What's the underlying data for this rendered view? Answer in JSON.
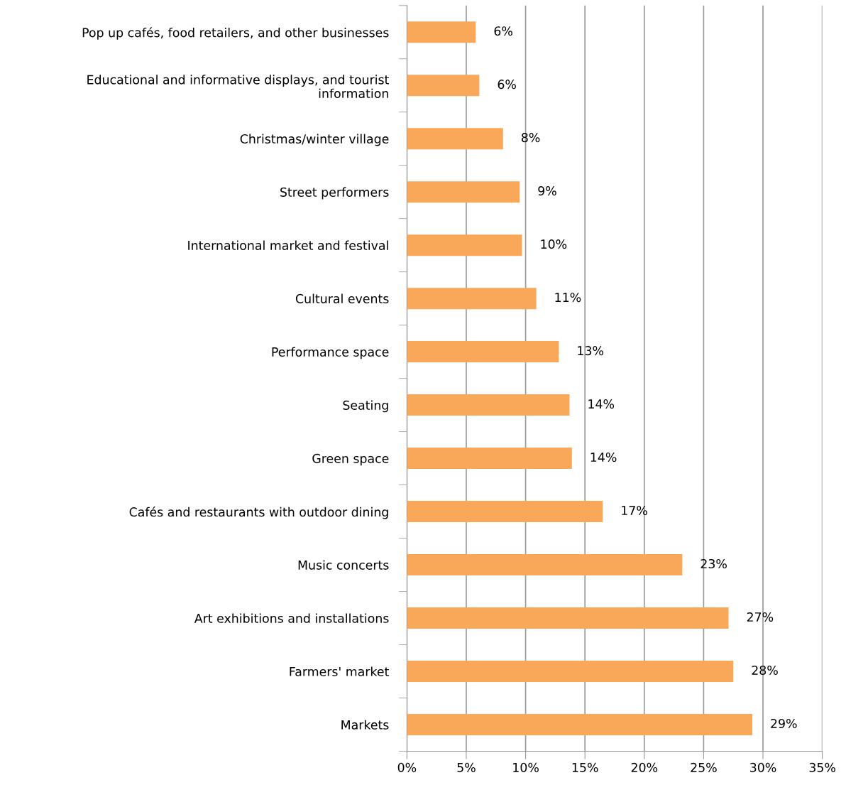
{
  "chart_data": {
    "type": "bar",
    "orientation": "horizontal",
    "categories": [
      "Pop up cafés, food retailers, and other businesses",
      "Educational and informative displays, and tourist\ninformation",
      "Christmas/winter village",
      "Street performers",
      "International market and festival",
      "Cultural events",
      "Performance space",
      "Seating",
      "Green space",
      "Cafés and restaurants with outdoor dining",
      "Music concerts",
      "Art exhibitions and installations",
      "Farmers' market",
      "Markets"
    ],
    "values": [
      5.8,
      6.1,
      8.1,
      9.5,
      9.7,
      10.9,
      12.8,
      13.7,
      13.9,
      16.5,
      23.2,
      27.1,
      27.5,
      29.1
    ],
    "value_labels": [
      "6%",
      "6%",
      "8%",
      "9%",
      "10%",
      "11%",
      "13%",
      "14%",
      "14%",
      "17%",
      "23%",
      "27%",
      "28%",
      "29%"
    ],
    "color": "#f9a85a",
    "xlim": [
      0,
      35
    ],
    "xticks": [
      {
        "value": 0,
        "label": "0%"
      },
      {
        "value": 5,
        "label": "5%"
      },
      {
        "value": 10,
        "label": "10%"
      },
      {
        "value": 15,
        "label": "15%"
      },
      {
        "value": 20,
        "label": "20%"
      },
      {
        "value": 25,
        "label": "25%"
      },
      {
        "value": 30,
        "label": "30%"
      },
      {
        "value": 35,
        "label": "35%"
      }
    ],
    "grid": "x",
    "legend": false
  }
}
